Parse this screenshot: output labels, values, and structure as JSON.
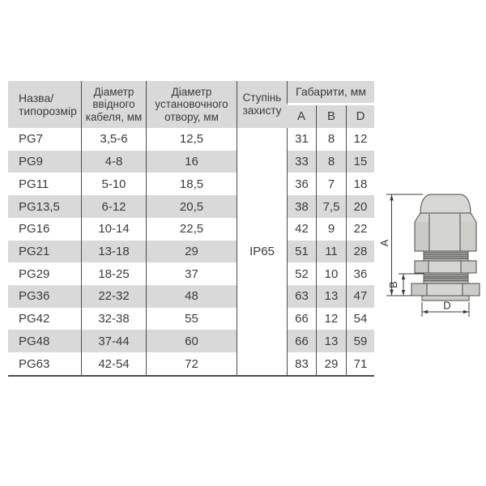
{
  "table": {
    "headers": {
      "name": "Назва/\nтипорозмір",
      "cable": "Діаметр\nввідного\nкабеля, мм",
      "hole": "Діаметр\nустановочного\nотвору, мм",
      "protection": "Ступінь\nзахисту",
      "dimensions": "Габарити, мм",
      "dim_a": "A",
      "dim_b": "B",
      "dim_d": "D"
    },
    "protection_value": "IP65",
    "rows": [
      {
        "name": "PG7",
        "cable": "3,5-6",
        "hole": "12,5",
        "a": "31",
        "b": "8",
        "d": "12"
      },
      {
        "name": "PG9",
        "cable": "4-8",
        "hole": "16",
        "a": "33",
        "b": "8",
        "d": "15"
      },
      {
        "name": "PG11",
        "cable": "5-10",
        "hole": "18,5",
        "a": "36",
        "b": "7",
        "d": "18"
      },
      {
        "name": "PG13,5",
        "cable": "6-12",
        "hole": "20,5",
        "a": "38",
        "b": "7,5",
        "d": "20"
      },
      {
        "name": "PG16",
        "cable": "10-14",
        "hole": "22,5",
        "a": "42",
        "b": "9",
        "d": "22"
      },
      {
        "name": "PG21",
        "cable": "13-18",
        "hole": "29",
        "a": "51",
        "b": "11",
        "d": "28"
      },
      {
        "name": "PG29",
        "cable": "18-25",
        "hole": "37",
        "a": "52",
        "b": "10",
        "d": "36"
      },
      {
        "name": "PG36",
        "cable": "22-32",
        "hole": "48",
        "a": "63",
        "b": "13",
        "d": "47"
      },
      {
        "name": "PG42",
        "cable": "32-38",
        "hole": "55",
        "a": "66",
        "b": "12",
        "d": "54"
      },
      {
        "name": "PG48",
        "cable": "37-44",
        "hole": "60",
        "a": "66",
        "b": "13",
        "d": "59"
      },
      {
        "name": "PG63",
        "cable": "42-54",
        "hole": "72",
        "a": "83",
        "b": "29",
        "d": "71"
      }
    ]
  },
  "drawing": {
    "labels": {
      "a": "A",
      "b": "B",
      "d": "D"
    },
    "body_fill": "#d4d4d0",
    "line_color": "#4a4a48"
  },
  "colors": {
    "row_gray": "#d9d9d9",
    "border_dark": "#4c4c4c",
    "text": "#3b3b3b",
    "background": "#ffffff"
  }
}
